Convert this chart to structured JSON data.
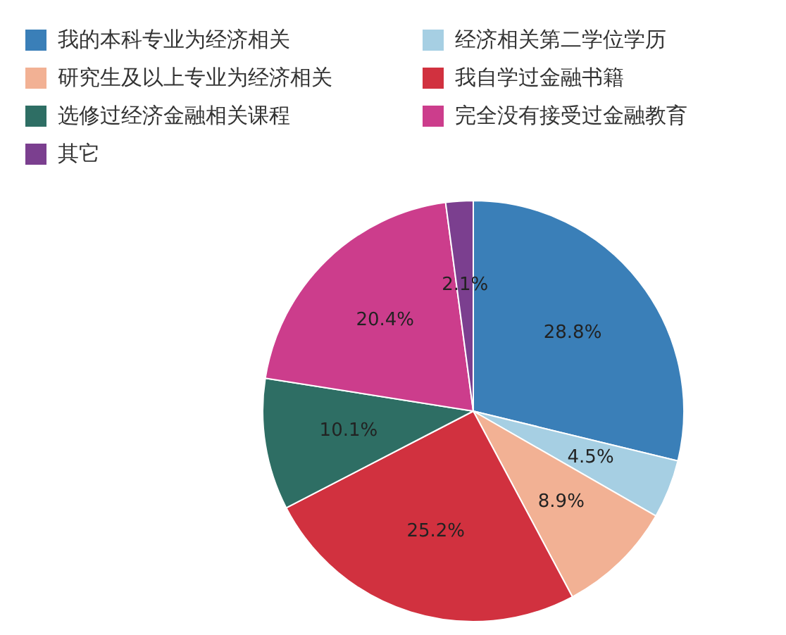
{
  "chart_data": {
    "type": "pie",
    "categories": [
      "我的本科专业为经济相关",
      "经济相关第二学位学历",
      "研究生及以上专业为经济相关",
      "我自学过金融书籍",
      "选修过经济金融相关课程",
      "完全没有接受过金融教育",
      "其它"
    ],
    "values": [
      28.8,
      4.5,
      8.9,
      25.2,
      10.1,
      20.4,
      2.1
    ],
    "colors": [
      "#3a7fb8",
      "#a6cfe3",
      "#f2b194",
      "#d1313f",
      "#2e6e64",
      "#cc3d8c",
      "#7b3f8f"
    ],
    "value_labels": [
      "28.8%",
      "4.5%",
      "8.9%",
      "25.2%",
      "10.1%",
      "20.4%",
      "2.1%"
    ],
    "legend": "top left"
  }
}
